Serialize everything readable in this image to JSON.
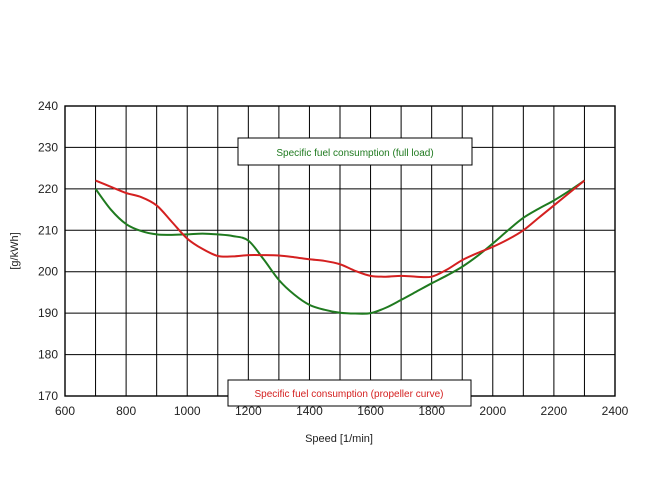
{
  "chart_data": {
    "type": "line",
    "xlabel": "Speed [1/min]",
    "ylabel": "[g/kWh]",
    "xlim": [
      600,
      2400
    ],
    "ylim": [
      170,
      240
    ],
    "x_ticks": [
      600,
      800,
      1000,
      1200,
      1400,
      1600,
      1800,
      2000,
      2200,
      2400
    ],
    "y_ticks": [
      170,
      180,
      190,
      200,
      210,
      220,
      230,
      240
    ],
    "grid": true,
    "series": [
      {
        "name": "Specific fuel consumption (full load)",
        "color": "#1f7a1f",
        "x": [
          700,
          750,
          800,
          850,
          900,
          950,
          1000,
          1050,
          1100,
          1150,
          1200,
          1250,
          1300,
          1350,
          1400,
          1450,
          1500,
          1550,
          1600,
          1650,
          1700,
          1750,
          1800,
          1850,
          1900,
          1950,
          2000,
          2050,
          2100,
          2150,
          2200,
          2250,
          2300
        ],
        "values": [
          220,
          215,
          211.5,
          209.8,
          209,
          208.9,
          209,
          209.2,
          209,
          208.6,
          207.5,
          203,
          198,
          194.5,
          192,
          190.8,
          190.1,
          189.9,
          190,
          191.3,
          193.2,
          195.2,
          197.2,
          199.1,
          201.2,
          203.8,
          206.8,
          210,
          213,
          215.2,
          217.2,
          219.5,
          222
        ]
      },
      {
        "name": "Specific fuel consumption (propeller curve)",
        "color": "#d42020",
        "x": [
          700,
          750,
          800,
          850,
          900,
          950,
          1000,
          1050,
          1100,
          1150,
          1200,
          1250,
          1300,
          1350,
          1400,
          1450,
          1500,
          1550,
          1600,
          1650,
          1700,
          1750,
          1800,
          1850,
          1900,
          1950,
          2000,
          2050,
          2100,
          2150,
          2200,
          2250,
          2300
        ],
        "values": [
          222,
          220.5,
          219,
          218,
          216,
          212,
          208,
          205.5,
          203.8,
          203.7,
          204,
          204,
          203.9,
          203.5,
          203,
          202.6,
          201.8,
          200.2,
          199,
          198.8,
          199,
          198.8,
          198.8,
          200.5,
          202.8,
          204.5,
          206,
          207.8,
          210,
          213,
          216,
          219,
          222
        ]
      }
    ],
    "legend": [
      {
        "label": "Specific fuel consumption (full load)",
        "placement": "top-center"
      },
      {
        "label": "Specific fuel consumption (propeller curve)",
        "placement": "bottom-center"
      }
    ]
  }
}
